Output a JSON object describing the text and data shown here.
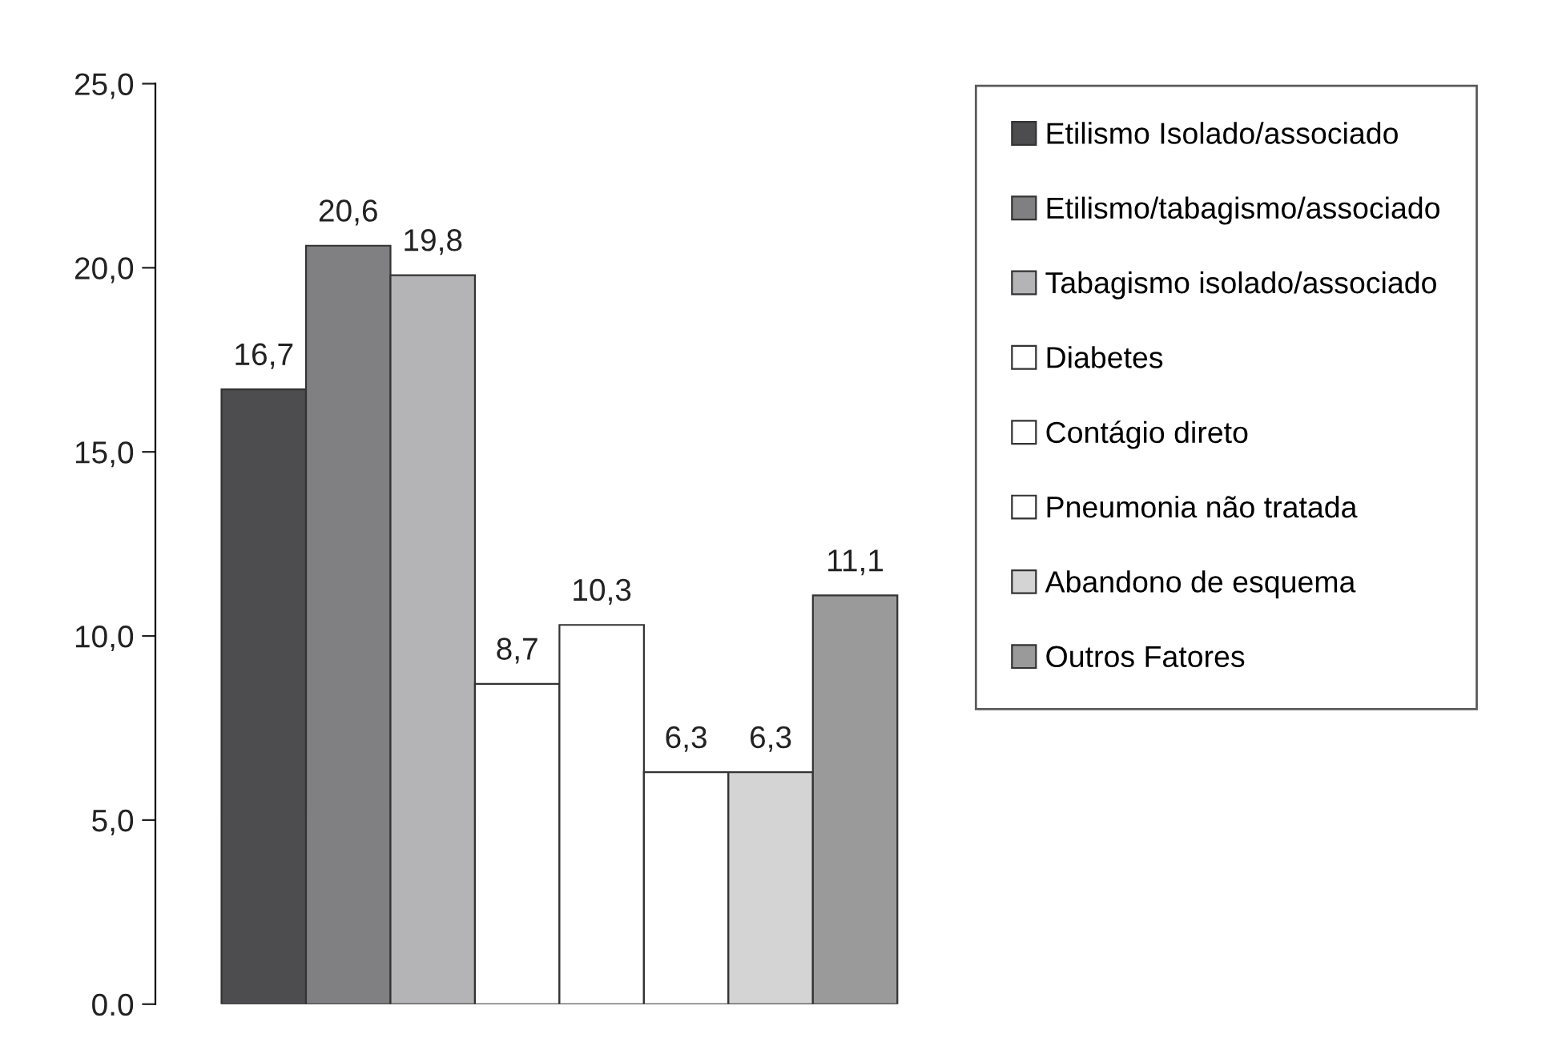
{
  "chart_data": {
    "type": "bar",
    "categories": [
      null
    ],
    "series": [
      {
        "name": "Etilismo Isolado/associado",
        "color": "#4d4d4f",
        "values": [
          16.7
        ],
        "value_labels": [
          "16,7"
        ]
      },
      {
        "name": "Etilismo/tabagismo/associado",
        "color": "#808083",
        "values": [
          20.6
        ],
        "value_labels": [
          "20,6"
        ]
      },
      {
        "name": "Tabagismo isolado/associado",
        "color": "#b4b4b6",
        "values": [
          19.8
        ],
        "value_labels": [
          "19,8"
        ]
      },
      {
        "name": "Diabetes",
        "color": "#ffffff",
        "values": [
          8.7
        ],
        "value_labels": [
          "8,7"
        ]
      },
      {
        "name": "Contágio direto",
        "color": "#ffffff",
        "values": [
          10.3
        ],
        "value_labels": [
          "10,3"
        ]
      },
      {
        "name": "Pneumonia não tratada",
        "color": "#ffffff",
        "values": [
          6.3
        ],
        "value_labels": [
          "6,3"
        ]
      },
      {
        "name": "Abandono de esquema",
        "color": "#d4d4d4",
        "values": [
          6.3
        ],
        "value_labels": [
          "6,3"
        ]
      },
      {
        "name": "Outros Fatores",
        "color": "#9a9a9a",
        "values": [
          11.1
        ],
        "value_labels": [
          "11,1"
        ]
      }
    ],
    "ylim": [
      0,
      25
    ],
    "yticks": [
      {
        "value": 0,
        "label": "0.0"
      },
      {
        "value": 5,
        "label": "5,0"
      },
      {
        "value": 10,
        "label": "10,0"
      },
      {
        "value": 15,
        "label": "15,0"
      },
      {
        "value": 20,
        "label": "20,0"
      },
      {
        "value": 25,
        "label": "25,0"
      }
    ],
    "grid": false,
    "legend": "right"
  }
}
